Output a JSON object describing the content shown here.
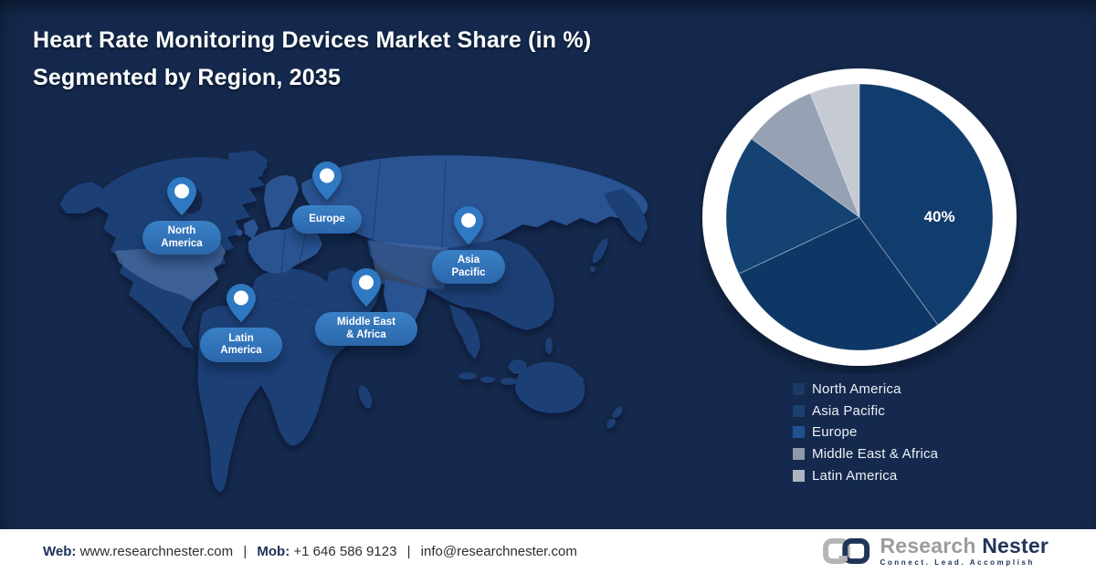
{
  "title": {
    "line1": "Heart Rate Monitoring Devices Market Share (in %)",
    "line2": "Segmented by Region, 2035"
  },
  "map": {
    "pins": [
      {
        "id": "north-america",
        "label": "North America",
        "line1": "North",
        "line2": "America"
      },
      {
        "id": "europe",
        "label": "Europe",
        "line1": "Europe",
        "line2": ""
      },
      {
        "id": "asia-pacific",
        "label": "Asia Pacific",
        "line1": "Asia",
        "line2": "Pacific"
      },
      {
        "id": "mea",
        "label": "Middle East & Africa",
        "line1": "Middle East",
        "line2": "& Africa"
      },
      {
        "id": "latin-america",
        "label": "Latin America",
        "line1": "Latin",
        "line2": "America"
      }
    ]
  },
  "chart_data": {
    "type": "pie",
    "title": "Heart Rate Monitoring Devices Market Share (in %) Segmented by Region, 2035",
    "labels": [
      "North America",
      "Asia Pacific",
      "Europe",
      "Middle East & Africa",
      "Latin America"
    ],
    "values": [
      40,
      28,
      17,
      9,
      6
    ],
    "displayed_labels": [
      "40%",
      "",
      "",
      "",
      ""
    ],
    "colors": [
      "#113c6e",
      "#0e3765",
      "#134273",
      "#97a1b4",
      "#c6cbd3"
    ],
    "start_angle_deg": -90,
    "direction": "clockwise",
    "ring_color": "#ffffff",
    "legend_position": "below-right"
  },
  "legend": {
    "items": [
      {
        "label": "North America",
        "color": "#1b3a66"
      },
      {
        "label": "Asia Pacific",
        "color": "#1c4070"
      },
      {
        "label": "Europe",
        "color": "#1f5191"
      },
      {
        "label": "Middle East & Africa",
        "color": "#8f99aa"
      },
      {
        "label": "Latin America",
        "color": "#aeb4c0"
      }
    ]
  },
  "footer": {
    "web_label": "Web:",
    "web_value": "www.researchnester.com",
    "separator": "|",
    "mob_label": "Mob:",
    "mob_value": "+1 646 586 9123",
    "email": "info@researchnester.com"
  },
  "logo": {
    "name_part1": "Research",
    "name_part2": "Nester",
    "tagline": "Connect. Lead. Accomplish"
  },
  "colors": {
    "background": "#14294d",
    "continent_base": "#1d4076",
    "continent_light": "#2a5292",
    "pin_blue": "#2f78c2",
    "pill_blue": "#2f72b8",
    "footer_navy": "#1c3157"
  }
}
